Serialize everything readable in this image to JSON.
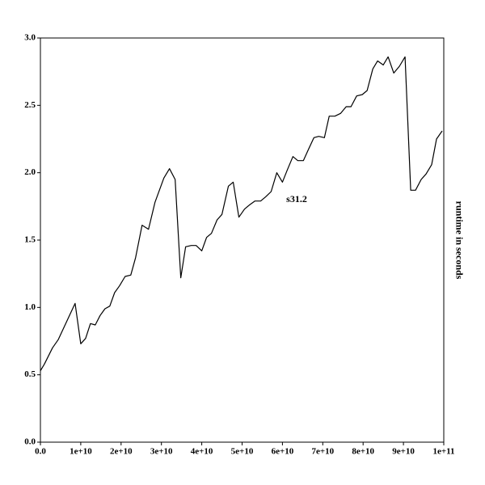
{
  "chart_data": {
    "type": "line",
    "annotation": "s31.2",
    "y_label": "runtime in seconds",
    "xlim": [
      0,
      100000000000.0
    ],
    "ylim": [
      0,
      3
    ],
    "xticks": [
      {
        "value": 0,
        "label": "0.0"
      },
      {
        "value": 10000000000.0,
        "label": "1e+10"
      },
      {
        "value": 20000000000.0,
        "label": "2e+10"
      },
      {
        "value": 30000000000.0,
        "label": "3e+10"
      },
      {
        "value": 40000000000.0,
        "label": "4e+10"
      },
      {
        "value": 50000000000.0,
        "label": "5e+10"
      },
      {
        "value": 60000000000.0,
        "label": "6e+10"
      },
      {
        "value": 70000000000.0,
        "label": "7e+10"
      },
      {
        "value": 80000000000.0,
        "label": "8e+10"
      },
      {
        "value": 90000000000.0,
        "label": "9e+10"
      },
      {
        "value": 100000000000.0,
        "label": "1e+11"
      }
    ],
    "yticks": [
      {
        "value": 0,
        "label": "0.0"
      },
      0.5,
      {
        "value": 1,
        "label": "1.0"
      },
      1.5,
      {
        "value": 2,
        "label": "2.0"
      },
      2.5,
      {
        "value": 3,
        "label": "3.0"
      }
    ],
    "color": "#000000",
    "x": [
      0,
      1000000000.0,
      3000000000.0,
      4400000000.0,
      8600000000.0,
      10000000000.0,
      11200000000.0,
      12400000000.0,
      13600000000.0,
      14800000000.0,
      16000000000.0,
      17200000000.0,
      18400000000.0,
      19600000000.0,
      21000000000.0,
      22400000000.0,
      23600000000.0,
      25200000000.0,
      26800000000.0,
      28400000000.0,
      30600000000.0,
      32000000000.0,
      33400000000.0,
      34800000000.0,
      36000000000.0,
      37400000000.0,
      38600000000.0,
      40000000000.0,
      41200000000.0,
      42400000000.0,
      43800000000.0,
      45000000000.0,
      46600000000.0,
      47800000000.0,
      49200000000.0,
      50600000000.0,
      51800000000.0,
      53200000000.0,
      54600000000.0,
      55800000000.0,
      57200000000.0,
      58600000000.0,
      60000000000.0,
      61200000000.0,
      62600000000.0,
      63800000000.0,
      65200000000.0,
      66400000000.0,
      67800000000.0,
      69000000000.0,
      70400000000.0,
      71600000000.0,
      73000000000.0,
      74400000000.0,
      75800000000.0,
      77000000000.0,
      78400000000.0,
      79800000000.0,
      81000000000.0,
      82400000000.0,
      83600000000.0,
      85000000000.0,
      86200000000.0,
      87600000000.0,
      89000000000.0,
      90400000000.0,
      91800000000.0,
      93000000000.0,
      94400000000.0,
      95600000000.0,
      97000000000.0,
      98200000000.0,
      99600000000.0
    ],
    "values": [
      0.53,
      0.58,
      0.7,
      0.76,
      1.03,
      0.73,
      0.77,
      0.88,
      0.87,
      0.94,
      0.99,
      1.01,
      1.11,
      1.16,
      1.23,
      1.24,
      1.37,
      1.61,
      1.58,
      1.78,
      1.96,
      2.03,
      1.95,
      1.22,
      1.45,
      1.46,
      1.46,
      1.42,
      1.52,
      1.55,
      1.65,
      1.69,
      1.9,
      1.93,
      1.67,
      1.73,
      1.76,
      1.79,
      1.79,
      1.82,
      1.86,
      2.0,
      1.93,
      2.02,
      2.12,
      2.09,
      2.09,
      2.17,
      2.26,
      2.27,
      2.26,
      2.42,
      2.42,
      2.44,
      2.49,
      2.49,
      2.57,
      2.58,
      2.61,
      2.77,
      2.83,
      2.8,
      2.86,
      2.74,
      2.79,
      2.86,
      1.87,
      1.87,
      1.95,
      1.99,
      2.06,
      2.25,
      2.31
    ]
  }
}
